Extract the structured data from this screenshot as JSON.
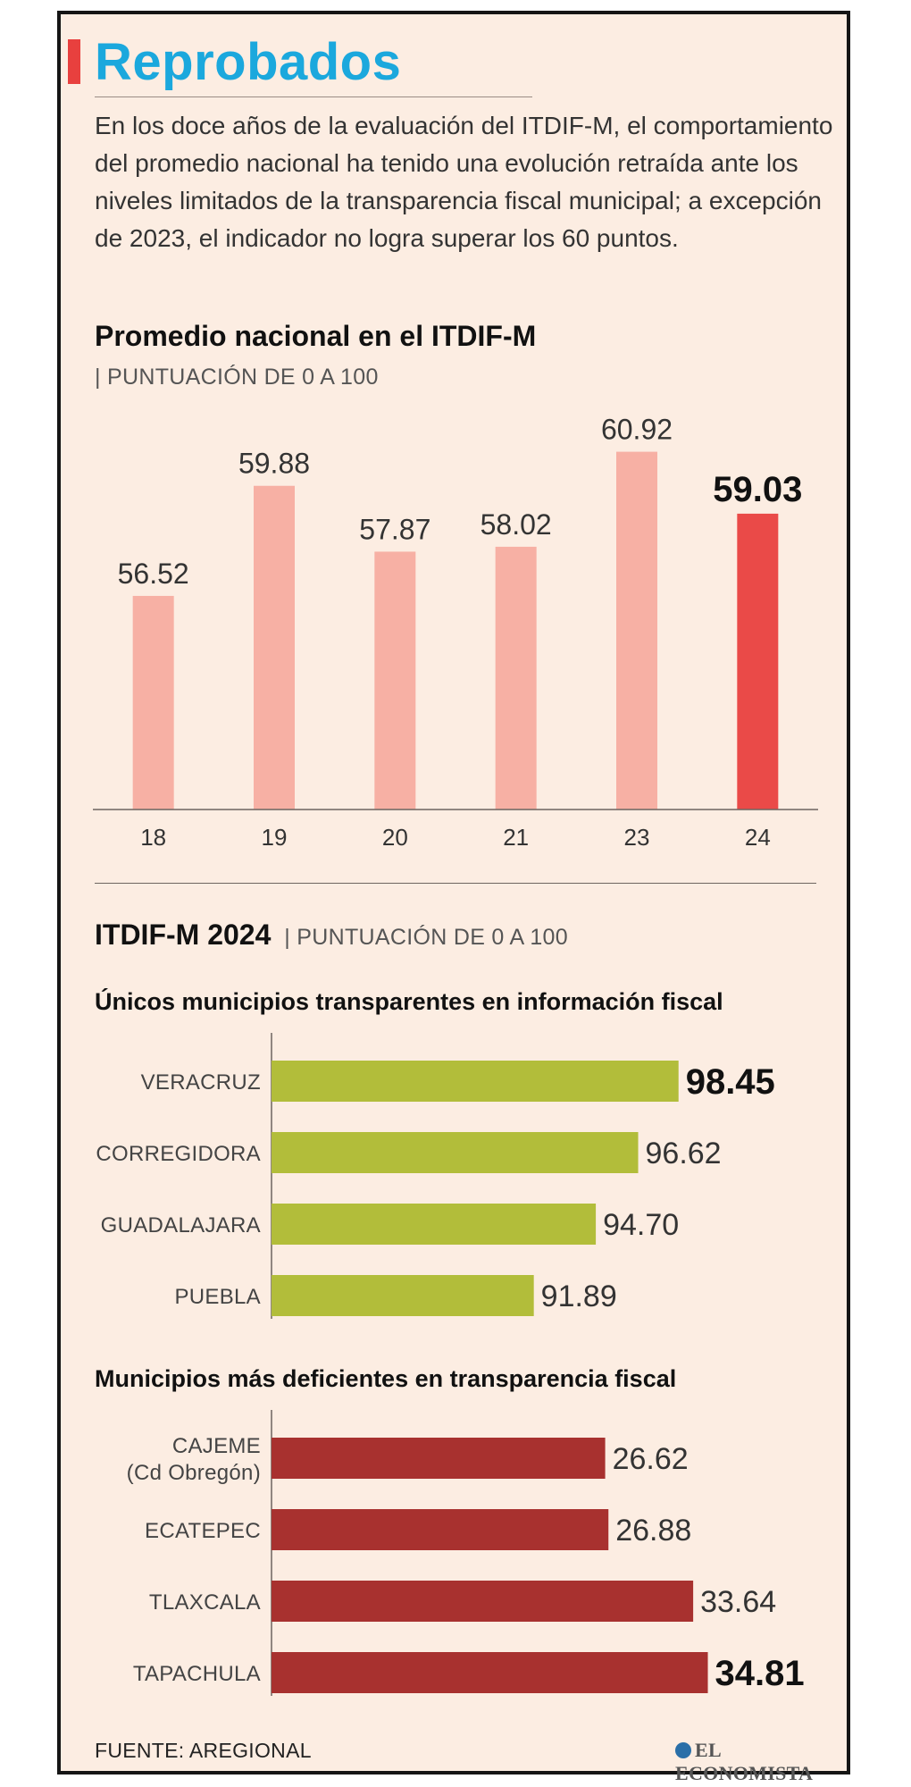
{
  "header": {
    "title": "Reprobados",
    "intro": "En los doce años de la evaluación del ITDIF-M, el comportamiento del promedio nacional ha tenido una evolución retraída ante los niveles limitados de la transparencia fiscal municipal; a excepción de 2023, el indicador no logra superar los 60 puntos."
  },
  "chart1": {
    "title": "Promedio nacional en el ITDIF-M",
    "subtitle": "| PUNTUACIÓN DE 0 A 100"
  },
  "chart2": {
    "title": "ITDIF-M 2024",
    "subtitle": "| PUNTUACIÓN DE 0 A 100",
    "group1_title": "Únicos municipios transparentes en información fiscal",
    "group2_title": "Municipios más deficientes en transparencia fiscal"
  },
  "footer": {
    "source": "FUENTE: AREGIONAL",
    "brand": "EL ECONOMISTA"
  },
  "colors": {
    "title": "#1ba8dd",
    "accent_red": "#e8403e",
    "bar_light": "#f7b0a4",
    "bar_highlight": "#ea4a48",
    "bar_green": "#b2bd3a",
    "bar_dark_red": "#a8312f",
    "background": "#fcede2"
  },
  "chart_data": [
    {
      "type": "bar",
      "categories": [
        "18",
        "19",
        "20",
        "21",
        "23",
        "24"
      ],
      "values": [
        56.52,
        59.88,
        57.87,
        58.02,
        60.92,
        59.03
      ],
      "value_labels": [
        "56.52",
        "59.88",
        "57.87",
        "58.02",
        "60.92",
        "59.03"
      ],
      "highlight_index": 5,
      "title": "Promedio nacional en el ITDIF-M",
      "ylabel": "PUNTUACIÓN DE 0 A 100",
      "ylim": [
        50,
        62
      ],
      "grid": false
    },
    {
      "type": "bar",
      "orientation": "horizontal",
      "title": "Únicos municipios transparentes en información fiscal",
      "categories": [
        [
          "VERACRUZ"
        ],
        [
          "CORREGIDORA"
        ],
        [
          "GUADALAJARA"
        ],
        [
          "PUEBLA"
        ]
      ],
      "values": [
        98.45,
        96.62,
        94.7,
        91.89
      ],
      "value_labels": [
        "98.45",
        "96.62",
        "94.70",
        "91.89"
      ],
      "highlight_index": 0,
      "xlim": [
        80,
        100
      ]
    },
    {
      "type": "bar",
      "orientation": "horizontal",
      "title": "Municipios más deficientes en transparencia fiscal",
      "categories": [
        [
          "CAJEME",
          "(Cd Obregón)"
        ],
        [
          "ECATEPEC"
        ],
        [
          "TLAXCALA"
        ],
        [
          "TAPACHULA"
        ]
      ],
      "values": [
        26.62,
        26.88,
        33.64,
        34.81
      ],
      "value_labels": [
        "26.62",
        "26.88",
        "33.64",
        "34.81"
      ],
      "highlight_index": 3,
      "xlim": [
        0,
        35.2
      ]
    }
  ]
}
